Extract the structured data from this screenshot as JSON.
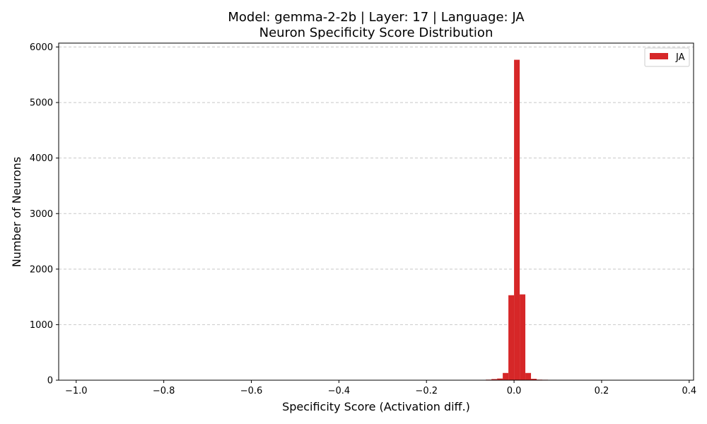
{
  "chart_data": {
    "type": "bar",
    "title_line1": "Model: gemma-2-2b | Layer: 17 | Language: JA",
    "title_line2": "Neuron Specificity Score Distribution",
    "xlabel": "Specificity Score (Activation diff.)",
    "ylabel": "Number of Neurons",
    "xlim": [
      -1.04,
      0.41
    ],
    "ylim": [
      0,
      6070
    ],
    "xticks": [
      -1.0,
      -0.8,
      -0.6,
      -0.4,
      -0.2,
      0.0,
      0.2,
      0.4
    ],
    "xtick_labels": [
      "−1.0",
      "−0.8",
      "−0.6",
      "−0.4",
      "−0.2",
      "0.0",
      "0.2",
      "0.4"
    ],
    "yticks": [
      0,
      1000,
      2000,
      3000,
      4000,
      5000,
      6000
    ],
    "ytick_labels": [
      "0",
      "1000",
      "2000",
      "3000",
      "4000",
      "5000",
      "6000"
    ],
    "grid": "y-dashed",
    "legend_position": "top-right",
    "color": "#d62728",
    "series": [
      {
        "name": "JA",
        "bins": [
          {
            "x0": -0.0774,
            "x1": -0.0645,
            "value": 5
          },
          {
            "x0": -0.0645,
            "x1": -0.0516,
            "value": 10
          },
          {
            "x0": -0.0516,
            "x1": -0.0387,
            "value": 20
          },
          {
            "x0": -0.0387,
            "x1": -0.0258,
            "value": 30
          },
          {
            "x0": -0.0258,
            "x1": -0.0129,
            "value": 130
          },
          {
            "x0": -0.0129,
            "x1": 0.0,
            "value": 1530
          },
          {
            "x0": 0.0,
            "x1": 0.0129,
            "value": 5770
          },
          {
            "x0": 0.0129,
            "x1": 0.0258,
            "value": 1545
          },
          {
            "x0": 0.0258,
            "x1": 0.0387,
            "value": 130
          },
          {
            "x0": 0.0387,
            "x1": 0.0516,
            "value": 25
          },
          {
            "x0": 0.0516,
            "x1": 0.0645,
            "value": 10
          },
          {
            "x0": 0.0645,
            "x1": 0.0774,
            "value": 8
          },
          {
            "x0": 0.0774,
            "x1": 0.0903,
            "value": 5
          }
        ]
      }
    ]
  }
}
